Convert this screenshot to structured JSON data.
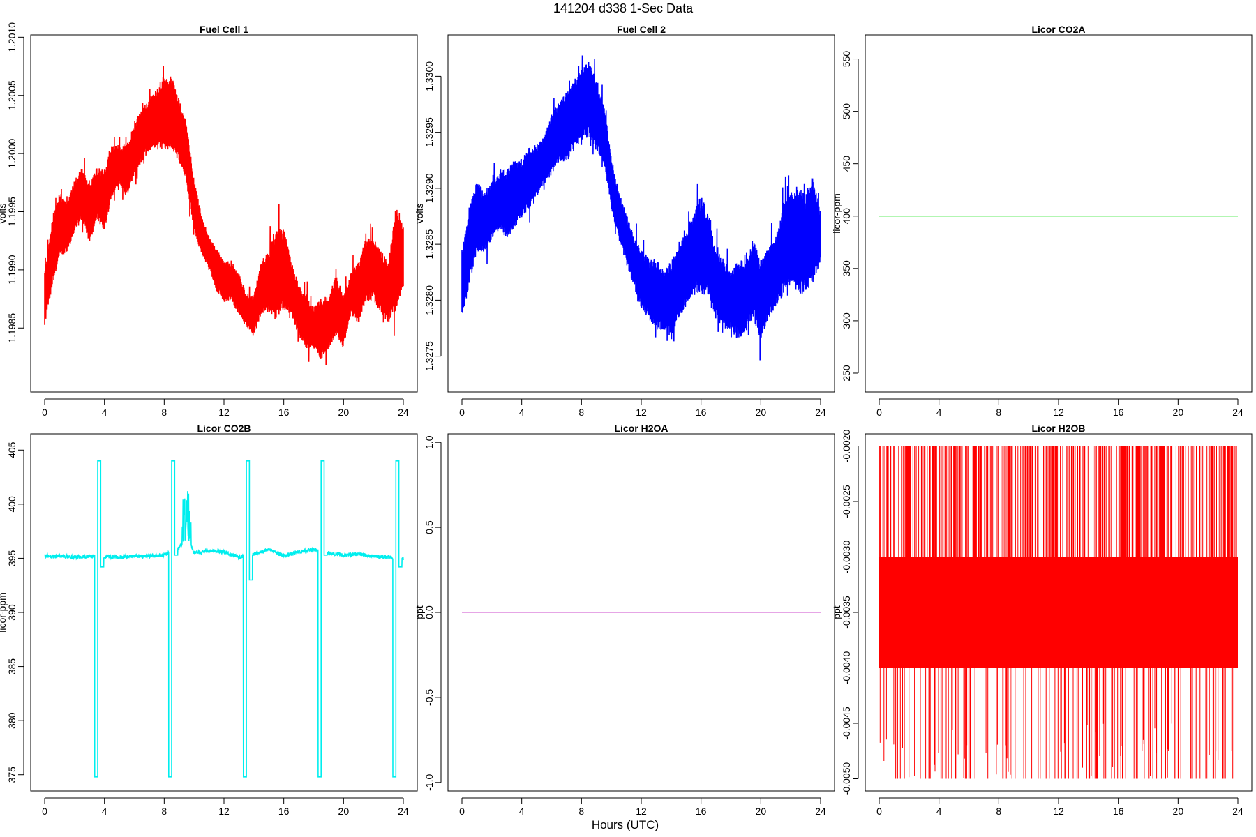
{
  "figure": {
    "title": "141204   d338   1-Sec Data",
    "xlabel": "Hours (UTC)"
  },
  "chart_data": [
    {
      "type": "line",
      "title": "Fuel Cell 1",
      "ylabel": "volts",
      "color": "#ff0000",
      "xlim": [
        0,
        24
      ],
      "ylim": [
        1.19795,
        1.20102
      ],
      "xticks": [
        0,
        4,
        8,
        12,
        16,
        20,
        24
      ],
      "yticks": [
        "1.1985",
        "1.1990",
        "1.1995",
        "1.2000",
        "1.2005",
        "1.2010"
      ],
      "series": [
        {
          "x": [
            0,
            0.5,
            1,
            1.5,
            2,
            2.5,
            3,
            3.5,
            4,
            4.5,
            5,
            5.5,
            6,
            6.5,
            7,
            7.5,
            8,
            8.5,
            9,
            9.5,
            10,
            10.5,
            11,
            11.5,
            12,
            12.5,
            13,
            13.5,
            14,
            14.5,
            15,
            15.5,
            16,
            16.5,
            17,
            17.5,
            18,
            18.5,
            19,
            19.5,
            20,
            20.5,
            21,
            21.5,
            22,
            22.5,
            23,
            23.5,
            24
          ],
          "lower": [
            1.1985,
            1.1988,
            1.1991,
            1.1991,
            1.1993,
            1.1994,
            1.1992,
            1.1994,
            1.1993,
            1.1996,
            1.1997,
            1.1996,
            1.1998,
            1.1999,
            1.2,
            1.2,
            1.2,
            1.2,
            1.1999,
            1.1997,
            1.1993,
            1.1991,
            1.199,
            1.1988,
            1.1987,
            1.1987,
            1.1986,
            1.1985,
            1.1984,
            1.1986,
            1.1986,
            1.1985,
            1.1986,
            1.1986,
            1.1984,
            1.1983,
            1.1983,
            1.1982,
            1.1983,
            1.1984,
            1.1983,
            1.1986,
            1.1985,
            1.1987,
            1.1987,
            1.1986,
            1.1985,
            1.1986,
            1.1988
          ],
          "upper": [
            1.199,
            1.1995,
            1.1997,
            1.1996,
            1.1998,
            1.1999,
            1.1998,
            1.1999,
            1.1999,
            1.2001,
            1.2001,
            1.2001,
            1.2003,
            1.2004,
            1.2005,
            1.2006,
            1.2007,
            1.2007,
            1.2005,
            1.2003,
            1.1998,
            1.1995,
            1.1993,
            1.1992,
            1.1991,
            1.1991,
            1.199,
            1.1988,
            1.1988,
            1.1991,
            1.1992,
            1.1994,
            1.1994,
            1.1991,
            1.1989,
            1.1988,
            1.1987,
            1.1988,
            1.1988,
            1.199,
            1.1988,
            1.199,
            1.1991,
            1.1993,
            1.1993,
            1.1992,
            1.1991,
            1.1996,
            1.1994
          ]
        }
      ]
    },
    {
      "type": "line",
      "title": "Fuel Cell 2",
      "ylabel": "volts",
      "color": "#0000ff",
      "xlim": [
        0,
        24
      ],
      "ylim": [
        1.32718,
        1.33037
      ],
      "xticks": [
        0,
        4,
        8,
        12,
        16,
        20,
        24
      ],
      "yticks": [
        "1.3275",
        "1.3280",
        "1.3285",
        "1.3290",
        "1.3295",
        "1.3300"
      ],
      "series": [
        {
          "x": [
            0,
            0.5,
            1,
            1.5,
            2,
            2.5,
            3,
            3.5,
            4,
            4.5,
            5,
            5.5,
            6,
            6.5,
            7,
            7.5,
            8,
            8.5,
            9,
            9.5,
            10,
            10.5,
            11,
            11.5,
            12,
            12.5,
            13,
            13.5,
            14,
            14.5,
            15,
            15.5,
            16,
            16.5,
            17,
            17.5,
            18,
            18.5,
            19,
            19.5,
            20,
            20.5,
            21,
            21.5,
            22,
            22.5,
            23,
            23.5,
            24
          ],
          "lower": [
            1.3278,
            1.3281,
            1.3284,
            1.3284,
            1.3285,
            1.3286,
            1.3285,
            1.3286,
            1.3287,
            1.3288,
            1.3289,
            1.329,
            1.3291,
            1.3292,
            1.3292,
            1.3293,
            1.3294,
            1.3294,
            1.3293,
            1.3292,
            1.3288,
            1.3285,
            1.3283,
            1.3281,
            1.3279,
            1.3278,
            1.3277,
            1.3277,
            1.3276,
            1.3278,
            1.3279,
            1.328,
            1.328,
            1.328,
            1.3278,
            1.3277,
            1.3277,
            1.3276,
            1.3277,
            1.3278,
            1.3276,
            1.3278,
            1.3279,
            1.328,
            1.3281,
            1.328,
            1.328,
            1.3281,
            1.3283
          ],
          "upper": [
            1.3285,
            1.3289,
            1.3291,
            1.329,
            1.3291,
            1.3292,
            1.3292,
            1.3293,
            1.3293,
            1.3294,
            1.3294,
            1.3295,
            1.3297,
            1.3298,
            1.3299,
            1.33,
            1.3301,
            1.3302,
            1.33,
            1.3298,
            1.3293,
            1.329,
            1.3288,
            1.3286,
            1.3285,
            1.3284,
            1.3284,
            1.3283,
            1.3284,
            1.3285,
            1.3287,
            1.3288,
            1.329,
            1.3288,
            1.3285,
            1.3284,
            1.3283,
            1.3284,
            1.3284,
            1.3286,
            1.3284,
            1.3285,
            1.3286,
            1.3289,
            1.329,
            1.3291,
            1.329,
            1.3292,
            1.3288
          ]
        }
      ]
    },
    {
      "type": "line",
      "title": "Licor CO2A",
      "ylabel": "licor-ppm",
      "color": "#66ee66",
      "xlim": [
        0,
        24
      ],
      "ylim": [
        232,
        573
      ],
      "xticks": [
        0,
        4,
        8,
        12,
        16,
        20,
        24
      ],
      "yticks": [
        "250",
        "300",
        "350",
        "400",
        "450",
        "500",
        "550"
      ],
      "series": [
        {
          "x": [
            0,
            24
          ],
          "y": [
            400,
            400
          ]
        }
      ]
    },
    {
      "type": "line",
      "title": "Licor CO2B",
      "ylabel": "licor-ppm",
      "color": "#00eeee",
      "xlim": [
        0,
        24
      ],
      "ylim": [
        373.5,
        406.5
      ],
      "xticks": [
        0,
        4,
        8,
        12,
        16,
        20,
        24
      ],
      "yticks": [
        "375",
        "380",
        "385",
        "390",
        "395",
        "400",
        "405"
      ],
      "calibration_cycles": [
        {
          "start": 3.35,
          "low": 374.8,
          "high": 404.0,
          "recovery": 394.2
        },
        {
          "start": 8.3,
          "low": 374.8,
          "high": 404.0,
          "recovery": 395.3
        },
        {
          "start": 13.3,
          "low": 374.8,
          "high": 404.0,
          "recovery": 393.0
        },
        {
          "start": 18.3,
          "low": 374.8,
          "high": 404.0,
          "recovery": 395.3
        },
        {
          "start": 23.3,
          "low": 374.8,
          "high": 404.0,
          "recovery": 394.2
        }
      ],
      "series": [
        {
          "x": [
            0,
            1,
            2,
            3,
            4,
            5,
            6,
            7,
            8,
            9,
            9.5,
            10,
            11,
            12,
            13,
            14,
            15,
            16,
            17,
            18,
            19,
            20,
            21,
            22,
            23,
            24
          ],
          "y": [
            395.2,
            395.2,
            395.1,
            395.2,
            395.2,
            395.1,
            395.2,
            395.2,
            395.3,
            396.0,
            397.0,
            395.5,
            395.7,
            395.6,
            395.1,
            395.4,
            395.8,
            395.2,
            395.6,
            395.8,
            395.5,
            395.3,
            395.4,
            395.2,
            395.1,
            395.0
          ]
        }
      ]
    },
    {
      "type": "line",
      "title": "Licor H2OA",
      "ylabel": "ppt",
      "color": "#dd88dd",
      "xlim": [
        0,
        24
      ],
      "ylim": [
        -1.05,
        1.05
      ],
      "xticks": [
        0,
        4,
        8,
        12,
        16,
        20,
        24
      ],
      "yticks": [
        "-1.0",
        "-0.5",
        "0.0",
        "0.5",
        "1.0"
      ],
      "series": [
        {
          "x": [
            0,
            24
          ],
          "y": [
            0,
            0
          ]
        }
      ]
    },
    {
      "type": "line",
      "title": "Licor H2OB",
      "ylabel": "ppt",
      "color": "#ff0000",
      "xlim": [
        0,
        24
      ],
      "ylim": [
        -0.00511,
        -0.00189
      ],
      "xticks": [
        0,
        4,
        8,
        12,
        16,
        20,
        24
      ],
      "yticks": [
        "-0.0050",
        "-0.0045",
        "-0.0040",
        "-0.0035",
        "-0.0030",
        "-0.0025",
        "-0.0020"
      ],
      "series": [
        {
          "name": "",
          "values_band": [
            -0.004,
            -0.003
          ],
          "spike_levels": [
            -0.005,
            -0.002
          ]
        }
      ]
    }
  ]
}
